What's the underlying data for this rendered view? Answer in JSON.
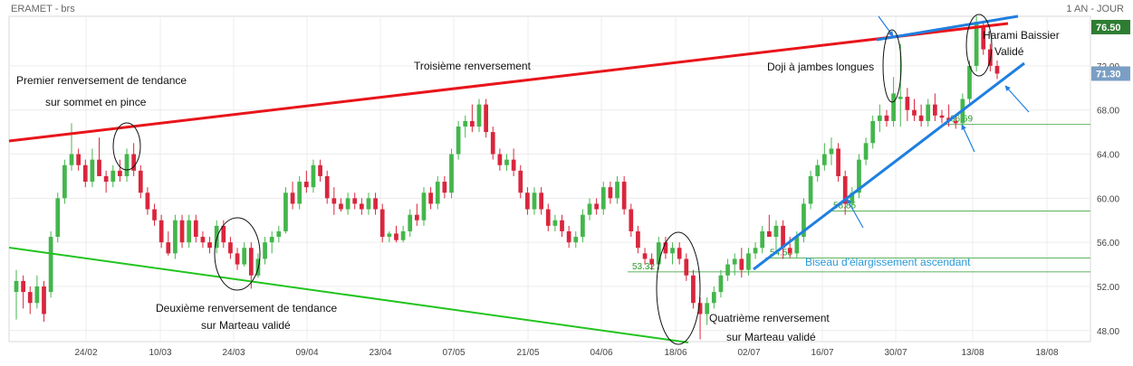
{
  "header": {
    "title": "ERAMET - brs",
    "period": "1 AN - JOUR"
  },
  "colors": {
    "up": "#44b64c",
    "down": "#d9263d",
    "resistance": "#e8151b",
    "support": "#21c41e",
    "wedge": "#1f7fe0",
    "level": "#2a9a2a",
    "last_price_bg": "#2e7d32",
    "current_price_bg": "#7a9ec4"
  },
  "chart_data": {
    "type": "candlestick",
    "x_tick_labels": [
      "24/02",
      "10/03",
      "24/03",
      "09/04",
      "23/04",
      "07/05",
      "21/05",
      "04/06",
      "18/06",
      "02/07",
      "16/07",
      "30/07",
      "13/08",
      "18/08"
    ],
    "y_tick_labels": [
      "48.00",
      "52.00",
      "56.00",
      "60.00",
      "64.00",
      "68.00",
      "72.00"
    ],
    "ylim": [
      47,
      76.5
    ],
    "last_price": "76.50",
    "current_price": "71.30",
    "grid": true,
    "price_levels": [
      {
        "value": 66.69,
        "label": "66.69"
      },
      {
        "value": 58.85,
        "label": "58.85"
      },
      {
        "value": 54.58,
        "label": "54.58"
      },
      {
        "value": 53.32,
        "label": "53.32"
      }
    ],
    "annotations": [
      {
        "id": "a1",
        "text": "Premier renversement de tendance"
      },
      {
        "id": "a2",
        "text": "sur sommet en pince"
      },
      {
        "id": "a3",
        "text": "Troisième renversement"
      },
      {
        "id": "a4",
        "text": "Doji à jambes longues"
      },
      {
        "id": "a5",
        "text": "Harami Baissier"
      },
      {
        "id": "a6",
        "text": "Validé"
      },
      {
        "id": "a7",
        "text": "Deuxième renversement de tendance"
      },
      {
        "id": "a8",
        "text": "sur Marteau validé"
      },
      {
        "id": "a9",
        "text": "Quatrième renversement"
      },
      {
        "id": "a10",
        "text": "sur Marteau validé"
      },
      {
        "id": "a11",
        "text": "Biseau d'élargissement ascendant"
      }
    ],
    "candles": [
      {
        "o": 51.5,
        "h": 53.5,
        "l": 49.0,
        "c": 52.5
      },
      {
        "o": 52.5,
        "h": 53.0,
        "l": 50.0,
        "c": 51.5
      },
      {
        "o": 51.5,
        "h": 52.0,
        "l": 49.5,
        "c": 50.5
      },
      {
        "o": 50.5,
        "h": 53.0,
        "l": 50.0,
        "c": 52.0
      },
      {
        "o": 52.0,
        "h": 52.5,
        "l": 48.8,
        "c": 49.5
      },
      {
        "o": 51.5,
        "h": 57.0,
        "l": 51.0,
        "c": 56.5
      },
      {
        "o": 56.5,
        "h": 60.5,
        "l": 56.0,
        "c": 60.0
      },
      {
        "o": 60.0,
        "h": 63.5,
        "l": 59.5,
        "c": 63.0
      },
      {
        "o": 63.0,
        "h": 66.8,
        "l": 62.5,
        "c": 64.0
      },
      {
        "o": 64.0,
        "h": 64.5,
        "l": 62.5,
        "c": 63.0
      },
      {
        "o": 63.0,
        "h": 63.5,
        "l": 61.0,
        "c": 61.5
      },
      {
        "o": 61.5,
        "h": 64.5,
        "l": 61.0,
        "c": 63.5
      },
      {
        "o": 63.5,
        "h": 65.5,
        "l": 62.0,
        "c": 62.0
      },
      {
        "o": 62.0,
        "h": 62.5,
        "l": 60.5,
        "c": 61.5
      },
      {
        "o": 61.5,
        "h": 63.0,
        "l": 61.0,
        "c": 62.5
      },
      {
        "o": 62.5,
        "h": 63.5,
        "l": 61.5,
        "c": 62.0
      },
      {
        "o": 62.0,
        "h": 64.5,
        "l": 61.5,
        "c": 64.0
      },
      {
        "o": 64.0,
        "h": 65.0,
        "l": 62.0,
        "c": 62.5
      },
      {
        "o": 62.5,
        "h": 63.0,
        "l": 60.0,
        "c": 60.5
      },
      {
        "o": 60.5,
        "h": 61.0,
        "l": 58.5,
        "c": 59.0
      },
      {
        "o": 59.0,
        "h": 59.5,
        "l": 57.5,
        "c": 58.0
      },
      {
        "o": 58.0,
        "h": 58.5,
        "l": 55.5,
        "c": 56.0
      },
      {
        "o": 56.0,
        "h": 57.0,
        "l": 54.8,
        "c": 55.0
      },
      {
        "o": 55.0,
        "h": 58.5,
        "l": 54.5,
        "c": 58.0
      },
      {
        "o": 58.0,
        "h": 58.5,
        "l": 55.5,
        "c": 56.0
      },
      {
        "o": 56.0,
        "h": 58.5,
        "l": 55.5,
        "c": 58.0
      },
      {
        "o": 58.0,
        "h": 58.5,
        "l": 56.0,
        "c": 56.5
      },
      {
        "o": 56.5,
        "h": 57.0,
        "l": 55.5,
        "c": 56.0
      },
      {
        "o": 56.0,
        "h": 56.5,
        "l": 55.0,
        "c": 55.5
      },
      {
        "o": 55.5,
        "h": 58.0,
        "l": 55.0,
        "c": 57.5
      },
      {
        "o": 57.5,
        "h": 58.0,
        "l": 55.5,
        "c": 56.0
      },
      {
        "o": 56.0,
        "h": 56.5,
        "l": 54.5,
        "c": 55.0
      },
      {
        "o": 55.0,
        "h": 55.5,
        "l": 53.5,
        "c": 54.0
      },
      {
        "o": 54.0,
        "h": 56.0,
        "l": 53.8,
        "c": 55.5
      },
      {
        "o": 55.5,
        "h": 56.0,
        "l": 51.8,
        "c": 53.0
      },
      {
        "o": 53.0,
        "h": 55.0,
        "l": 52.8,
        "c": 54.5
      },
      {
        "o": 54.5,
        "h": 56.5,
        "l": 54.0,
        "c": 56.0
      },
      {
        "o": 56.0,
        "h": 57.0,
        "l": 55.0,
        "c": 56.5
      },
      {
        "o": 56.5,
        "h": 57.5,
        "l": 56.0,
        "c": 57.0
      },
      {
        "o": 57.0,
        "h": 61.0,
        "l": 56.8,
        "c": 60.5
      },
      {
        "o": 60.5,
        "h": 61.5,
        "l": 59.0,
        "c": 59.5
      },
      {
        "o": 59.5,
        "h": 62.0,
        "l": 59.0,
        "c": 61.5
      },
      {
        "o": 61.5,
        "h": 62.5,
        "l": 60.5,
        "c": 61.0
      },
      {
        "o": 61.0,
        "h": 63.5,
        "l": 60.5,
        "c": 63.0
      },
      {
        "o": 63.0,
        "h": 63.5,
        "l": 61.5,
        "c": 62.0
      },
      {
        "o": 62.0,
        "h": 62.5,
        "l": 59.5,
        "c": 60.0
      },
      {
        "o": 60.0,
        "h": 61.0,
        "l": 58.5,
        "c": 59.5
      },
      {
        "o": 59.5,
        "h": 60.0,
        "l": 58.8,
        "c": 59.0
      },
      {
        "o": 59.0,
        "h": 60.5,
        "l": 58.5,
        "c": 60.0
      },
      {
        "o": 60.0,
        "h": 60.5,
        "l": 59.0,
        "c": 59.5
      },
      {
        "o": 59.5,
        "h": 60.0,
        "l": 58.5,
        "c": 59.0
      },
      {
        "o": 59.0,
        "h": 60.5,
        "l": 58.5,
        "c": 60.0
      },
      {
        "o": 60.0,
        "h": 60.5,
        "l": 58.5,
        "c": 59.0
      },
      {
        "o": 59.0,
        "h": 59.5,
        "l": 56.0,
        "c": 56.5
      },
      {
        "o": 56.5,
        "h": 57.0,
        "l": 56.0,
        "c": 56.8
      },
      {
        "o": 56.8,
        "h": 57.5,
        "l": 56.0,
        "c": 56.2
      },
      {
        "o": 56.2,
        "h": 57.5,
        "l": 56.0,
        "c": 57.0
      },
      {
        "o": 57.0,
        "h": 59.0,
        "l": 56.5,
        "c": 58.5
      },
      {
        "o": 58.5,
        "h": 59.5,
        "l": 57.5,
        "c": 58.0
      },
      {
        "o": 58.0,
        "h": 61.0,
        "l": 57.5,
        "c": 60.5
      },
      {
        "o": 60.5,
        "h": 61.0,
        "l": 59.0,
        "c": 59.5
      },
      {
        "o": 59.5,
        "h": 62.0,
        "l": 59.0,
        "c": 61.5
      },
      {
        "o": 61.5,
        "h": 62.0,
        "l": 60.0,
        "c": 60.5
      },
      {
        "o": 60.5,
        "h": 64.5,
        "l": 60.0,
        "c": 64.0
      },
      {
        "o": 64.0,
        "h": 67.0,
        "l": 63.5,
        "c": 66.5
      },
      {
        "o": 66.5,
        "h": 67.5,
        "l": 65.5,
        "c": 67.0
      },
      {
        "o": 67.0,
        "h": 68.5,
        "l": 66.0,
        "c": 66.5
      },
      {
        "o": 66.5,
        "h": 69.0,
        "l": 66.0,
        "c": 68.5
      },
      {
        "o": 68.5,
        "h": 69.0,
        "l": 65.5,
        "c": 66.0
      },
      {
        "o": 66.0,
        "h": 66.5,
        "l": 63.5,
        "c": 64.0
      },
      {
        "o": 64.0,
        "h": 64.5,
        "l": 62.5,
        "c": 63.0
      },
      {
        "o": 63.0,
        "h": 64.0,
        "l": 62.5,
        "c": 63.5
      },
      {
        "o": 63.5,
        "h": 64.5,
        "l": 62.0,
        "c": 62.5
      },
      {
        "o": 62.5,
        "h": 63.0,
        "l": 60.0,
        "c": 60.5
      },
      {
        "o": 60.5,
        "h": 61.0,
        "l": 58.5,
        "c": 59.0
      },
      {
        "o": 59.0,
        "h": 61.0,
        "l": 58.5,
        "c": 60.5
      },
      {
        "o": 60.5,
        "h": 61.0,
        "l": 58.5,
        "c": 59.0
      },
      {
        "o": 59.0,
        "h": 59.5,
        "l": 57.0,
        "c": 57.5
      },
      {
        "o": 57.5,
        "h": 58.5,
        "l": 57.0,
        "c": 58.0
      },
      {
        "o": 58.0,
        "h": 58.5,
        "l": 56.5,
        "c": 57.0
      },
      {
        "o": 57.0,
        "h": 57.5,
        "l": 55.5,
        "c": 56.0
      },
      {
        "o": 56.0,
        "h": 57.0,
        "l": 55.5,
        "c": 56.5
      },
      {
        "o": 56.5,
        "h": 59.0,
        "l": 56.0,
        "c": 58.5
      },
      {
        "o": 58.5,
        "h": 60.0,
        "l": 58.0,
        "c": 59.5
      },
      {
        "o": 59.5,
        "h": 60.0,
        "l": 58.5,
        "c": 59.0
      },
      {
        "o": 59.0,
        "h": 61.5,
        "l": 58.5,
        "c": 61.0
      },
      {
        "o": 61.0,
        "h": 61.5,
        "l": 59.5,
        "c": 60.0
      },
      {
        "o": 60.0,
        "h": 62.0,
        "l": 59.5,
        "c": 61.5
      },
      {
        "o": 61.5,
        "h": 62.0,
        "l": 58.5,
        "c": 59.0
      },
      {
        "o": 59.0,
        "h": 59.5,
        "l": 56.5,
        "c": 57.0
      },
      {
        "o": 57.0,
        "h": 57.5,
        "l": 55.0,
        "c": 55.5
      },
      {
        "o": 55.0,
        "h": 55.5,
        "l": 54.0,
        "c": 54.5
      },
      {
        "o": 54.5,
        "h": 55.0,
        "l": 53.5,
        "c": 54.0
      },
      {
        "o": 54.0,
        "h": 56.5,
        "l": 53.5,
        "c": 56.0
      },
      {
        "o": 56.0,
        "h": 56.5,
        "l": 54.5,
        "c": 55.0
      },
      {
        "o": 55.0,
        "h": 56.0,
        "l": 54.0,
        "c": 55.5
      },
      {
        "o": 55.5,
        "h": 56.0,
        "l": 54.0,
        "c": 54.5
      },
      {
        "o": 54.5,
        "h": 55.0,
        "l": 52.5,
        "c": 53.0
      },
      {
        "o": 53.0,
        "h": 53.5,
        "l": 50.0,
        "c": 50.5
      },
      {
        "o": 50.5,
        "h": 51.0,
        "l": 47.2,
        "c": 49.5
      },
      {
        "o": 49.5,
        "h": 51.0,
        "l": 48.5,
        "c": 50.5
      },
      {
        "o": 50.5,
        "h": 52.0,
        "l": 50.0,
        "c": 51.5
      },
      {
        "o": 51.5,
        "h": 53.5,
        "l": 51.0,
        "c": 53.0
      },
      {
        "o": 53.0,
        "h": 54.5,
        "l": 52.5,
        "c": 54.0
      },
      {
        "o": 54.0,
        "h": 55.0,
        "l": 53.0,
        "c": 54.5
      },
      {
        "o": 54.5,
        "h": 55.5,
        "l": 52.8,
        "c": 53.5
      },
      {
        "o": 53.5,
        "h": 55.5,
        "l": 53.0,
        "c": 55.0
      },
      {
        "o": 55.0,
        "h": 56.0,
        "l": 54.5,
        "c": 55.5
      },
      {
        "o": 55.5,
        "h": 57.5,
        "l": 55.0,
        "c": 57.0
      },
      {
        "o": 57.0,
        "h": 58.5,
        "l": 56.5,
        "c": 56.5
      },
      {
        "o": 56.5,
        "h": 58.0,
        "l": 55.0,
        "c": 57.5
      },
      {
        "o": 57.5,
        "h": 58.0,
        "l": 54.5,
        "c": 55.5
      },
      {
        "o": 55.5,
        "h": 56.5,
        "l": 54.6,
        "c": 55.0
      },
      {
        "o": 55.0,
        "h": 57.0,
        "l": 54.6,
        "c": 56.5
      },
      {
        "o": 56.5,
        "h": 60.0,
        "l": 56.0,
        "c": 59.5
      },
      {
        "o": 59.5,
        "h": 62.5,
        "l": 59.0,
        "c": 62.0
      },
      {
        "o": 62.0,
        "h": 63.5,
        "l": 61.5,
        "c": 63.0
      },
      {
        "o": 63.0,
        "h": 65.0,
        "l": 62.5,
        "c": 64.0
      },
      {
        "o": 64.0,
        "h": 65.5,
        "l": 63.0,
        "c": 64.5
      },
      {
        "o": 64.5,
        "h": 65.0,
        "l": 61.5,
        "c": 62.0
      },
      {
        "o": 62.0,
        "h": 62.5,
        "l": 58.5,
        "c": 59.5
      },
      {
        "o": 59.5,
        "h": 61.0,
        "l": 59.0,
        "c": 60.5
      },
      {
        "o": 60.5,
        "h": 64.0,
        "l": 60.0,
        "c": 63.5
      },
      {
        "o": 63.5,
        "h": 65.5,
        "l": 63.0,
        "c": 65.0
      },
      {
        "o": 65.0,
        "h": 67.5,
        "l": 64.5,
        "c": 67.0
      },
      {
        "o": 67.0,
        "h": 68.5,
        "l": 66.0,
        "c": 67.5
      },
      {
        "o": 67.5,
        "h": 68.0,
        "l": 66.5,
        "c": 67.0
      },
      {
        "o": 67.0,
        "h": 71.0,
        "l": 66.5,
        "c": 69.5
      },
      {
        "o": 69.0,
        "h": 74.0,
        "l": 66.5,
        "c": 69.2
      },
      {
        "o": 69.2,
        "h": 70.0,
        "l": 67.0,
        "c": 68.0
      },
      {
        "o": 68.0,
        "h": 69.0,
        "l": 67.0,
        "c": 67.5
      },
      {
        "o": 67.5,
        "h": 68.5,
        "l": 66.5,
        "c": 67.0
      },
      {
        "o": 67.0,
        "h": 69.0,
        "l": 66.5,
        "c": 68.5
      },
      {
        "o": 68.5,
        "h": 69.5,
        "l": 67.0,
        "c": 67.5
      },
      {
        "o": 67.5,
        "h": 68.0,
        "l": 66.8,
        "c": 67.3
      },
      {
        "o": 67.3,
        "h": 68.5,
        "l": 66.5,
        "c": 67.0
      },
      {
        "o": 67.0,
        "h": 67.5,
        "l": 66.3,
        "c": 66.8
      },
      {
        "o": 66.8,
        "h": 69.5,
        "l": 66.5,
        "c": 69.0
      },
      {
        "o": 69.0,
        "h": 72.5,
        "l": 68.5,
        "c": 72.0
      },
      {
        "o": 72.0,
        "h": 76.5,
        "l": 71.5,
        "c": 76.0
      },
      {
        "o": 75.5,
        "h": 76.0,
        "l": 73.0,
        "c": 73.5
      },
      {
        "o": 73.5,
        "h": 74.0,
        "l": 71.5,
        "c": 72.0
      },
      {
        "o": 72.0,
        "h": 72.5,
        "l": 70.8,
        "c": 71.3
      }
    ]
  }
}
